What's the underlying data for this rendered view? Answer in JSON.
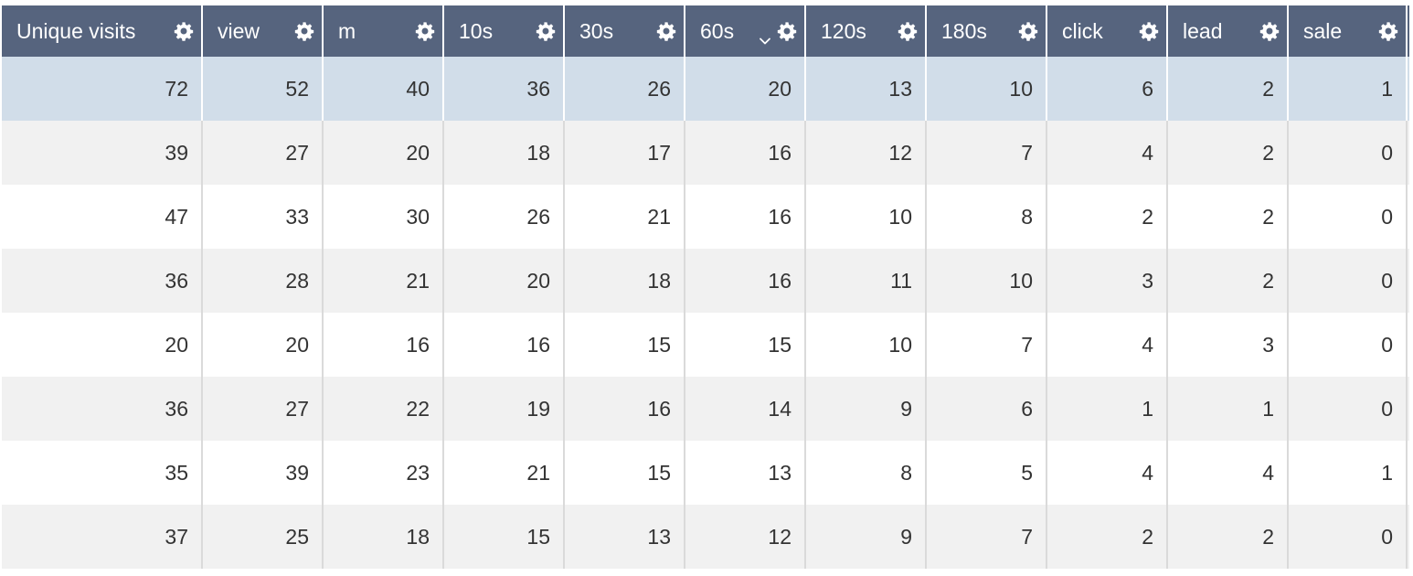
{
  "table": {
    "columns": [
      {
        "key": "unique_visits",
        "label": "Unique visits",
        "sorted": false
      },
      {
        "key": "view",
        "label": "view",
        "sorted": false
      },
      {
        "key": "m",
        "label": "m",
        "sorted": false
      },
      {
        "key": "10s",
        "label": "10s",
        "sorted": false
      },
      {
        "key": "30s",
        "label": "30s",
        "sorted": false
      },
      {
        "key": "60s",
        "label": "60s",
        "sorted": true,
        "sort_direction": "descending"
      },
      {
        "key": "120s",
        "label": "120s",
        "sorted": false
      },
      {
        "key": "180s",
        "label": "180s",
        "sorted": false
      },
      {
        "key": "click",
        "label": "click",
        "sorted": false
      },
      {
        "key": "lead",
        "label": "lead",
        "sorted": false
      },
      {
        "key": "sale",
        "label": "sale",
        "sorted": false
      }
    ],
    "rows": [
      {
        "selected": true,
        "cells": [
          "72",
          "52",
          "40",
          "36",
          "26",
          "20",
          "13",
          "10",
          "6",
          "2",
          "1"
        ]
      },
      {
        "selected": false,
        "cells": [
          "39",
          "27",
          "20",
          "18",
          "17",
          "16",
          "12",
          "7",
          "4",
          "2",
          "0"
        ]
      },
      {
        "selected": false,
        "cells": [
          "47",
          "33",
          "30",
          "26",
          "21",
          "16",
          "10",
          "8",
          "2",
          "2",
          "0"
        ]
      },
      {
        "selected": false,
        "cells": [
          "36",
          "28",
          "21",
          "20",
          "18",
          "16",
          "11",
          "10",
          "3",
          "2",
          "0"
        ]
      },
      {
        "selected": false,
        "cells": [
          "20",
          "20",
          "16",
          "16",
          "15",
          "15",
          "10",
          "7",
          "4",
          "3",
          "0"
        ]
      },
      {
        "selected": false,
        "cells": [
          "36",
          "27",
          "22",
          "19",
          "16",
          "14",
          "9",
          "6",
          "1",
          "1",
          "0"
        ]
      },
      {
        "selected": false,
        "cells": [
          "35",
          "39",
          "23",
          "21",
          "15",
          "13",
          "8",
          "5",
          "4",
          "4",
          "1"
        ]
      },
      {
        "selected": false,
        "cells": [
          "37",
          "25",
          "18",
          "15",
          "13",
          "12",
          "9",
          "7",
          "2",
          "2",
          "0"
        ]
      }
    ],
    "header_icon": "gear-icon",
    "sort_icon": "chevron-down-icon"
  },
  "colors": {
    "header_bg": "#56647e",
    "header_text": "#ffffff",
    "selected_row_bg": "#d1dde9",
    "even_row_bg": "#f1f1f1",
    "odd_row_bg": "#ffffff",
    "cell_text": "#333333",
    "gridline": "#dadada"
  }
}
